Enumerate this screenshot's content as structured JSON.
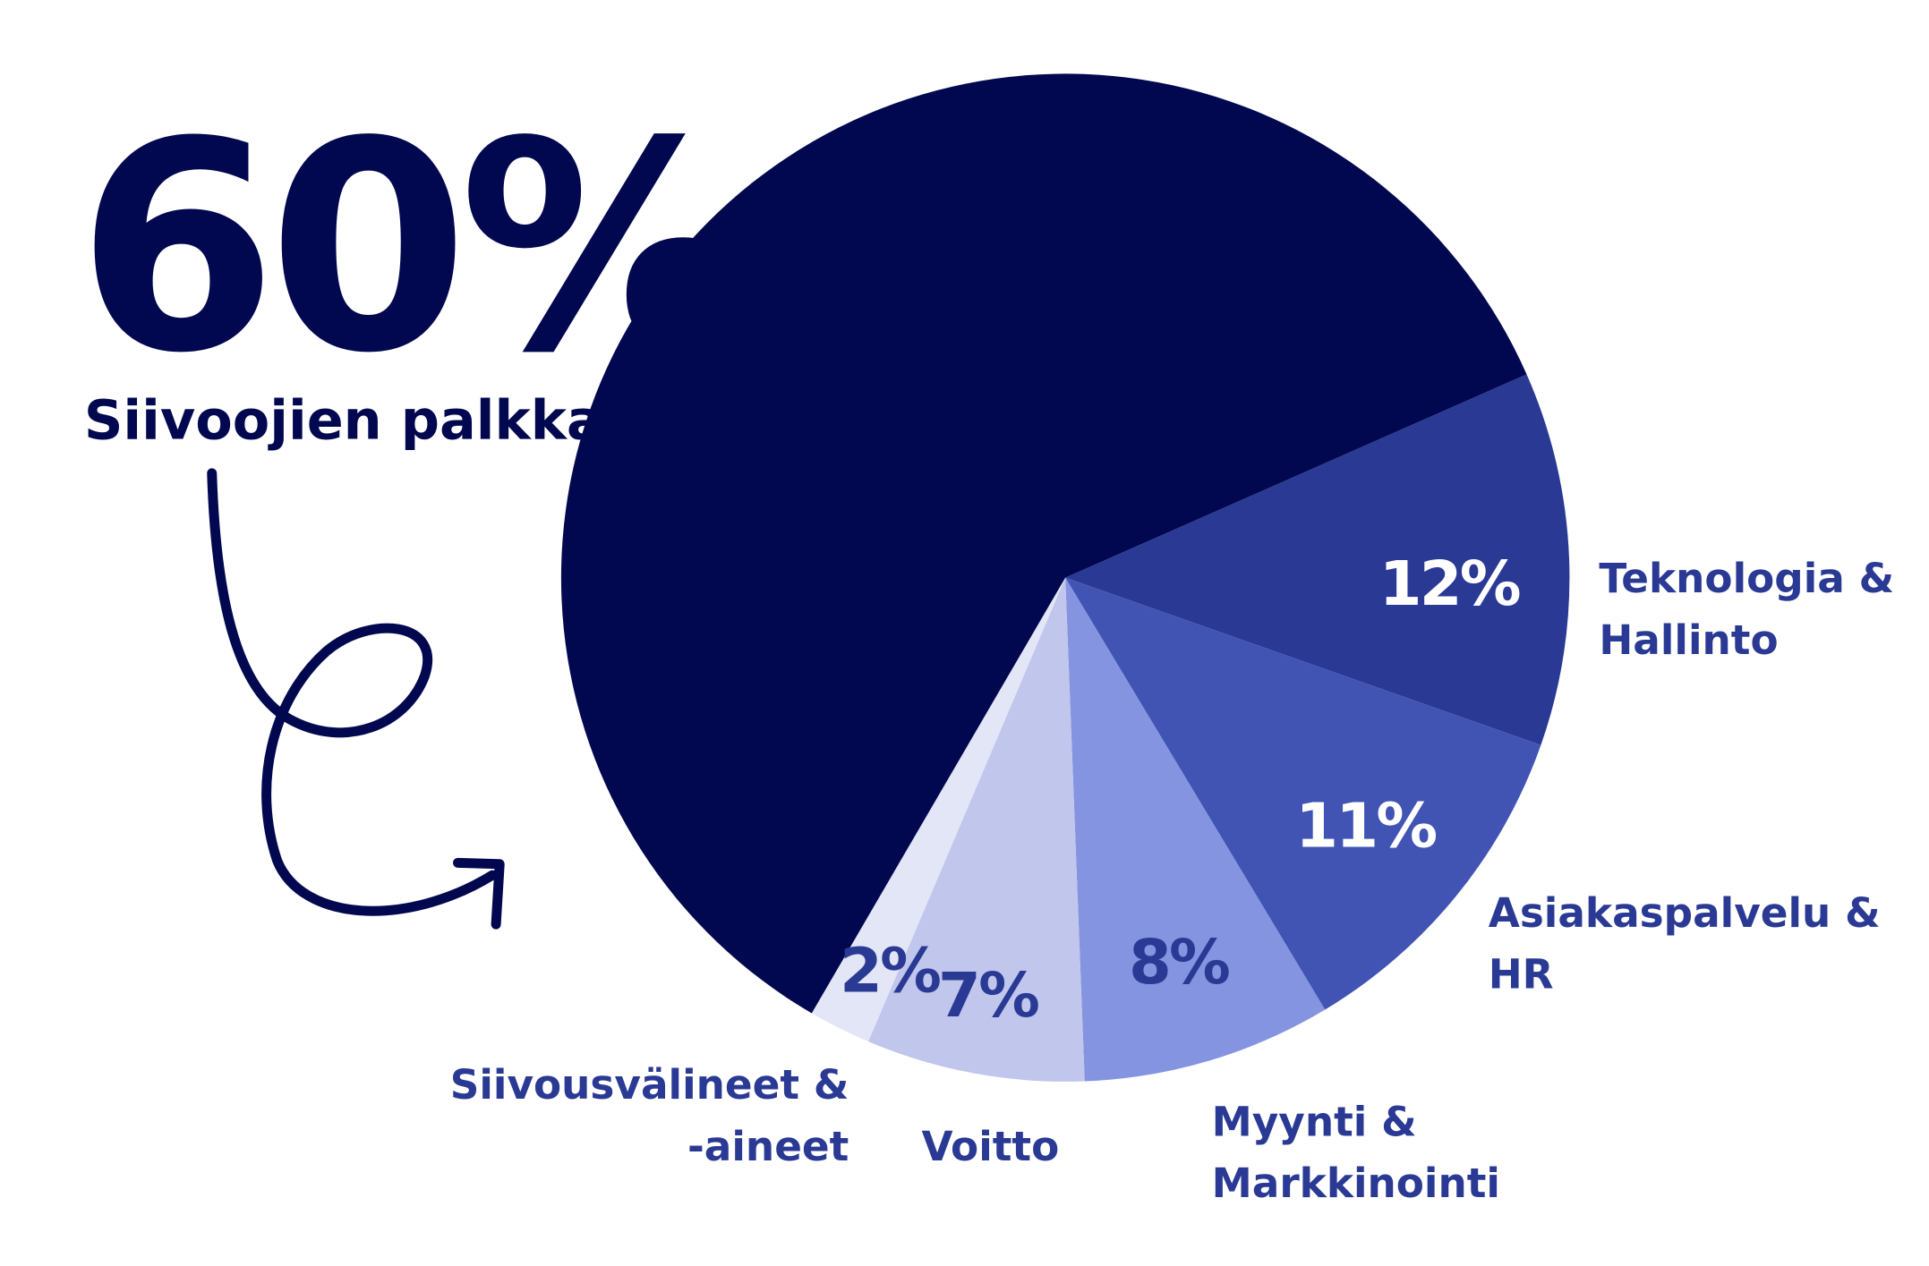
{
  "chart_data": {
    "type": "pie",
    "categories": [
      [
        "Teknologia &",
        "Hallinto"
      ],
      [
        "Asiakaspalvelu &",
        "HR"
      ],
      [
        "Myynti &",
        "Markkinointi"
      ],
      [
        "Voitto"
      ],
      [
        "Siivousvälineet &",
        "-aineet"
      ],
      [
        "Siivoojien palkka"
      ]
    ],
    "values": [
      12,
      11,
      8,
      7,
      2,
      60
    ],
    "value_labels": [
      "12%",
      "11%",
      "8%",
      "7%",
      "2%",
      "60%"
    ],
    "colors": [
      "#2a3a94",
      "#4154b3",
      "#8594e0",
      "#c0c6ec",
      "#e3e6f6",
      "#02084f"
    ]
  }
}
